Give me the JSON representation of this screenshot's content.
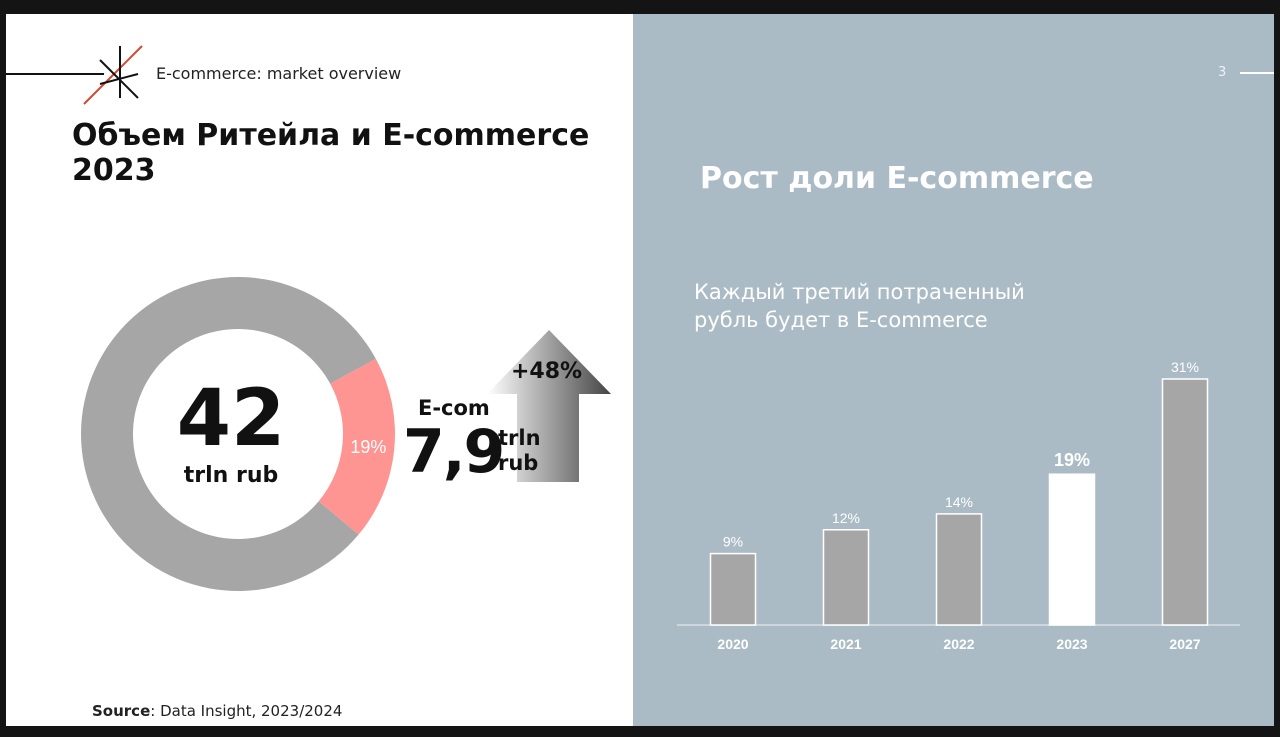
{
  "header": {
    "subtitle": "E-commerce: market overview",
    "page_number": "3"
  },
  "left": {
    "title": "Объем Ритейла и E-commerce 2023",
    "total": {
      "value": "42",
      "unit": "trln rub"
    },
    "ecom": {
      "label": "E-com",
      "value": "7,9",
      "unit": "trln rub"
    },
    "growth": "+48%",
    "source_label": "Source",
    "source_text": ": Data Insight, 2023/2024"
  },
  "right": {
    "title": "Рост доли E-commerce",
    "subtitle": "Каждый третий потраченный рубль будет в E-commerce"
  },
  "colors": {
    "left_bg": "#ffffff",
    "right_bg": "#abbbc6",
    "donut_main": "#a6a6a6",
    "donut_ecom": "#ff9592",
    "bar": "#a6a6a6",
    "bar_highlight": "#ffffff"
  },
  "chart_data": [
    {
      "type": "pie",
      "variant": "donut",
      "slices": [
        {
          "value": 81
        },
        {
          "value": 19,
          "label": "19%"
        }
      ]
    },
    {
      "type": "bar",
      "categories": [
        "2020",
        "2021",
        "2022",
        "2023",
        "2027"
      ],
      "values": [
        9,
        12,
        14,
        19,
        31
      ],
      "data_labels": [
        "9%",
        "12%",
        "14%",
        "19%",
        "31%"
      ],
      "highlight_category": "2023",
      "title": "",
      "xlabel": "",
      "ylabel": "",
      "grid": false
    }
  ]
}
